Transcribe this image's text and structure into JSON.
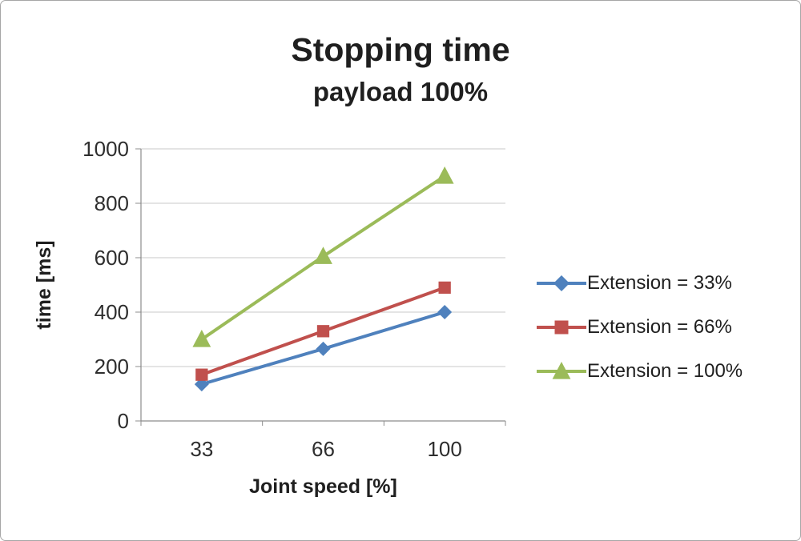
{
  "title": "Stopping time",
  "subtitle": "payload 100%",
  "chart_data": {
    "type": "line",
    "x_labels": [
      "33",
      "66",
      "100"
    ],
    "series": [
      {
        "name": "Extension = 33%",
        "values": [
          135,
          265,
          400
        ],
        "color": "#4f81bd",
        "marker": "diamond"
      },
      {
        "name": "Extension = 66%",
        "values": [
          170,
          330,
          490
        ],
        "color": "#c0504d",
        "marker": "square"
      },
      {
        "name": "Extension = 100%",
        "values": [
          300,
          605,
          900
        ],
        "color": "#9bbb59",
        "marker": "triangle"
      }
    ],
    "xlabel": "Joint speed [%]",
    "ylabel": "time [ms]",
    "ylim": [
      0,
      1000
    ],
    "ytick_step": 200,
    "grid": true,
    "legend_position": "right",
    "axis_color": "#8c8c8c",
    "grid_color": "#c9c9c9",
    "tick_label_color": "#2e2e2e"
  }
}
